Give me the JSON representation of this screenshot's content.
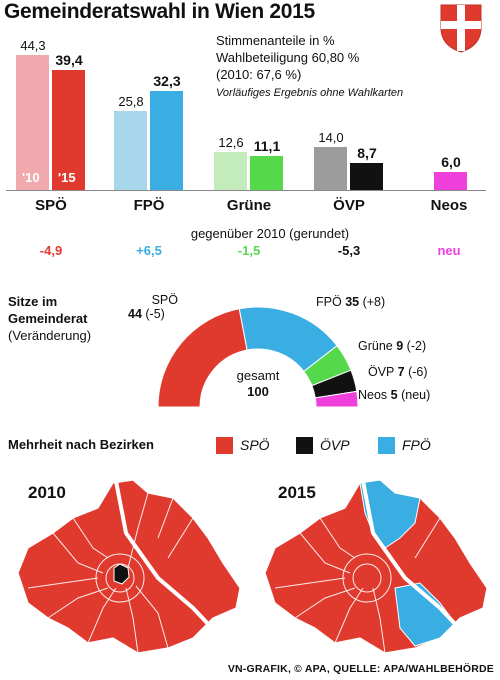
{
  "title": "Gemeinderatswahl in Wien 2015",
  "info": {
    "line1": "Stimmenanteile in %",
    "line2": "Wahlbeteiligung 60,80 %",
    "line3": "(2010: 67,6 %)",
    "note": "Vorläufiges Ergebnis ohne Wahlkarten"
  },
  "chart_data": [
    {
      "type": "bar",
      "categories": [
        "SPÖ",
        "FPÖ",
        "Grüne",
        "ÖVP",
        "Neos"
      ],
      "series": [
        {
          "name": "'10",
          "values": [
            44.3,
            25.8,
            12.6,
            14.0,
            null
          ],
          "labels": [
            "44,3",
            "25,8",
            "12,6",
            "14,0",
            ""
          ]
        },
        {
          "name": "'15",
          "values": [
            39.4,
            32.3,
            11.1,
            8.7,
            6.0
          ],
          "labels": [
            "39,4",
            "32,3",
            "11,1",
            "8,7",
            "6,0"
          ]
        }
      ],
      "colors_2010": [
        "#f0a9ac",
        "#a8d6ea",
        "#c4ebbb",
        "#9c9c9c",
        ""
      ],
      "colors_2015": [
        "#e03a2e",
        "#3aaee2",
        "#55d94b",
        "#111111",
        "#f040dc"
      ],
      "delta_title": "gegenüber 2010 (gerundet)",
      "deltas": [
        "-4,9",
        "+6,5",
        "-1,5",
        "-5,3",
        "neu"
      ],
      "delta_colors": [
        "#e03a2e",
        "#3aaee2",
        "#55d94b",
        "#111111",
        "#f040dc"
      ]
    },
    {
      "type": "pie",
      "title_lines": [
        "Sitze im",
        "Gemeinderat",
        "(Veränderung)"
      ],
      "center_lines": [
        "gesamt",
        "100"
      ],
      "slices": [
        {
          "label": "SPÖ",
          "seats": 44,
          "change": "(-5)",
          "color": "#e03a2e"
        },
        {
          "label": "FPÖ",
          "seats": 35,
          "change": "(+8)",
          "color": "#3aaee2"
        },
        {
          "label": "Grüne",
          "seats": 9,
          "change": "(-2)",
          "color": "#55d94b"
        },
        {
          "label": "ÖVP",
          "seats": 7,
          "change": "(-6)",
          "color": "#111111"
        },
        {
          "label": "Neos",
          "seats": 5,
          "change": "(neu)",
          "color": "#f040dc"
        }
      ]
    }
  ],
  "districts": {
    "title": "Mehrheit nach Bezirken",
    "legend": [
      {
        "label": "SPÖ",
        "color": "#e03a2e"
      },
      {
        "label": "ÖVP",
        "color": "#111111"
      },
      {
        "label": "FPÖ",
        "color": "#3aaee2"
      }
    ],
    "map_2010": "2010",
    "map_2015": "2015"
  },
  "credit": "VN-GRAFIK, © APA, QUELLE: APA/WAHLBEHÖRDE"
}
